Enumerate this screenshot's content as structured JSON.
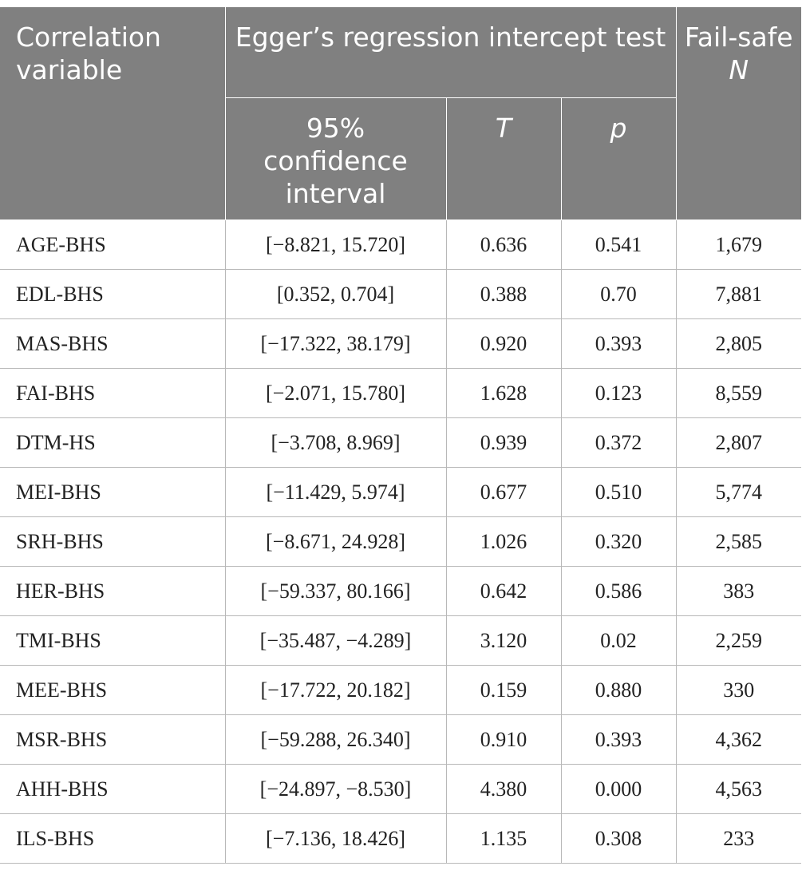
{
  "header": {
    "correlation_variable": "Correlation variable",
    "egger_test": "Egger’s regression intercept test",
    "failsafe_prefix": "Fail-safe ",
    "failsafe_n": "N",
    "ci": "95% confidence interval",
    "t": "T",
    "p": "p"
  },
  "rows": [
    {
      "variable": "AGE-BHS",
      "ci": "[−8.821, 15.720]",
      "t": "0.636",
      "p": "0.541",
      "failsafe_n": "1,679"
    },
    {
      "variable": "EDL-BHS",
      "ci": "[0.352, 0.704]",
      "t": "0.388",
      "p": "0.70",
      "failsafe_n": "7,881"
    },
    {
      "variable": "MAS-BHS",
      "ci": "[−17.322, 38.179]",
      "t": "0.920",
      "p": "0.393",
      "failsafe_n": "2,805"
    },
    {
      "variable": "FAI-BHS",
      "ci": "[−2.071, 15.780]",
      "t": "1.628",
      "p": "0.123",
      "failsafe_n": "8,559"
    },
    {
      "variable": "DTM-HS",
      "ci": "[−3.708, 8.969]",
      "t": "0.939",
      "p": "0.372",
      "failsafe_n": "2,807"
    },
    {
      "variable": "MEI-BHS",
      "ci": "[−11.429, 5.974]",
      "t": "0.677",
      "p": "0.510",
      "failsafe_n": "5,774"
    },
    {
      "variable": "SRH-BHS",
      "ci": "[−8.671, 24.928]",
      "t": "1.026",
      "p": "0.320",
      "failsafe_n": "2,585"
    },
    {
      "variable": "HER-BHS",
      "ci": "[−59.337, 80.166]",
      "t": "0.642",
      "p": "0.586",
      "failsafe_n": "383"
    },
    {
      "variable": "TMI-BHS",
      "ci": "[−35.487, −4.289]",
      "t": "3.120",
      "p": "0.02",
      "failsafe_n": "2,259"
    },
    {
      "variable": "MEE-BHS",
      "ci": "[−17.722, 20.182]",
      "t": "0.159",
      "p": "0.880",
      "failsafe_n": "330"
    },
    {
      "variable": "MSR-BHS",
      "ci": "[−59.288, 26.340]",
      "t": "0.910",
      "p": "0.393",
      "failsafe_n": "4,362"
    },
    {
      "variable": "AHH-BHS",
      "ci": "[−24.897, −8.530]",
      "t": "4.380",
      "p": "0.000",
      "failsafe_n": "4,563"
    },
    {
      "variable": "ILS-BHS",
      "ci": "[−7.136, 18.426]",
      "t": "1.135",
      "p": "0.308",
      "failsafe_n": "233"
    }
  ],
  "colors": {
    "header_bg": "#808080",
    "header_text": "#ffffff",
    "grid": "#b8b8b8"
  }
}
